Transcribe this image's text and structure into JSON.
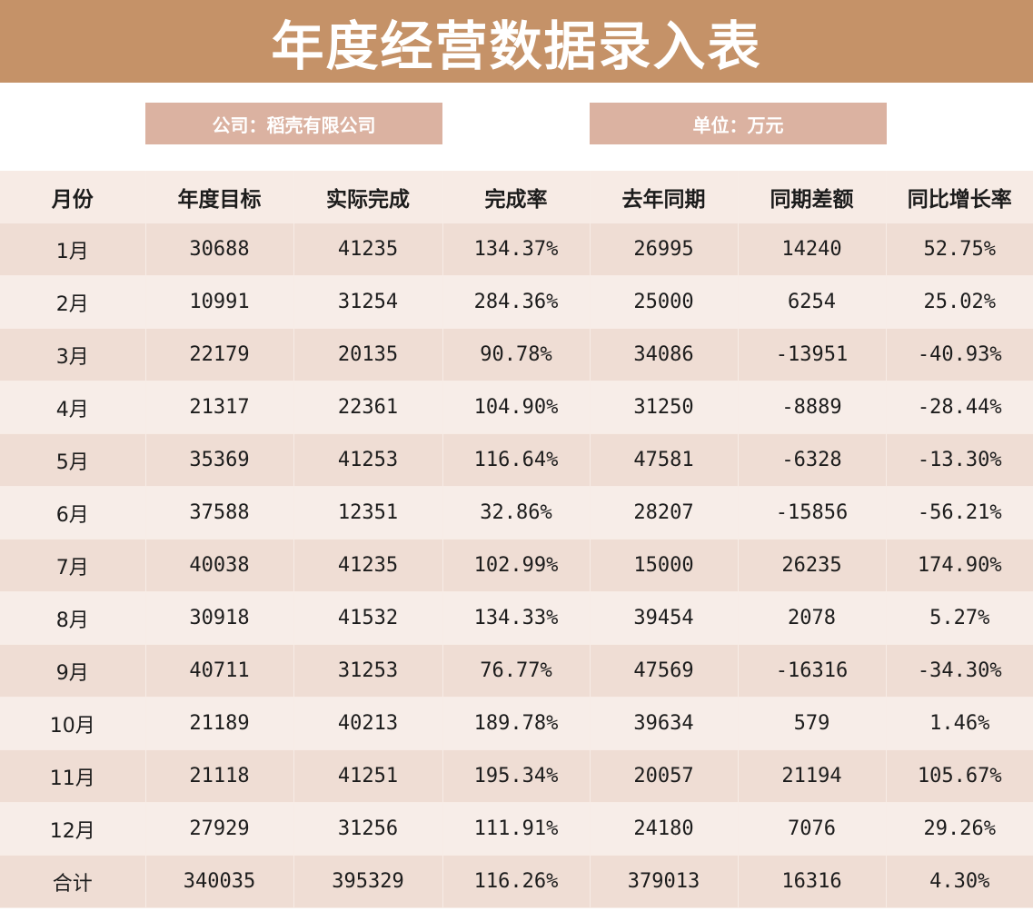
{
  "title": "年度经营数据录入表",
  "info": {
    "company": "公司：稻壳有限公司",
    "unit": "单位：万元"
  },
  "colors": {
    "title_bg": "#c59268",
    "info_bg": "#dbb2a1",
    "header_bg": "#f7ebe5",
    "row_dark": "#efddd4",
    "row_light": "#f7ede8"
  },
  "table": {
    "headers": [
      "月份",
      "年度目标",
      "实际完成",
      "完成率",
      "去年同期",
      "同期差额",
      "同比增长率"
    ],
    "rows": [
      [
        "1月",
        "30688",
        "41235",
        "134.37%",
        "26995",
        "14240",
        "52.75%"
      ],
      [
        "2月",
        "10991",
        "31254",
        "284.36%",
        "25000",
        "6254",
        "25.02%"
      ],
      [
        "3月",
        "22179",
        "20135",
        "90.78%",
        "34086",
        "-13951",
        "-40.93%"
      ],
      [
        "4月",
        "21317",
        "22361",
        "104.90%",
        "31250",
        "-8889",
        "-28.44%"
      ],
      [
        "5月",
        "35369",
        "41253",
        "116.64%",
        "47581",
        "-6328",
        "-13.30%"
      ],
      [
        "6月",
        "37588",
        "12351",
        "32.86%",
        "28207",
        "-15856",
        "-56.21%"
      ],
      [
        "7月",
        "40038",
        "41235",
        "102.99%",
        "15000",
        "26235",
        "174.90%"
      ],
      [
        "8月",
        "30918",
        "41532",
        "134.33%",
        "39454",
        "2078",
        "5.27%"
      ],
      [
        "9月",
        "40711",
        "31253",
        "76.77%",
        "47569",
        "-16316",
        "-34.30%"
      ],
      [
        "10月",
        "21189",
        "40213",
        "189.78%",
        "39634",
        "579",
        "1.46%"
      ],
      [
        "11月",
        "21118",
        "41251",
        "195.34%",
        "20057",
        "21194",
        "105.67%"
      ],
      [
        "12月",
        "27929",
        "31256",
        "111.91%",
        "24180",
        "7076",
        "29.26%"
      ],
      [
        "合计",
        "340035",
        "395329",
        "116.26%",
        "379013",
        "16316",
        "4.30%"
      ]
    ]
  }
}
